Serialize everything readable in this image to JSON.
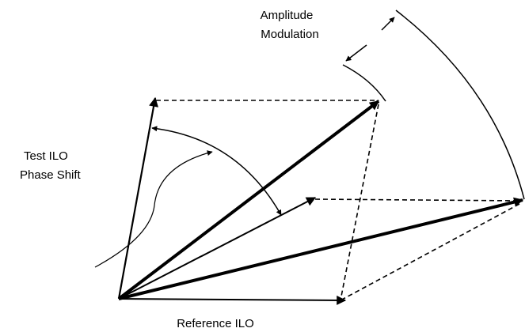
{
  "labels": {
    "amplitude_modulation": [
      "Amplitude",
      "Modulation"
    ],
    "test_ilo_phase_shift": [
      "Test ILO",
      "Phase Shift"
    ],
    "reference_ilo": "Reference ILO"
  }
}
